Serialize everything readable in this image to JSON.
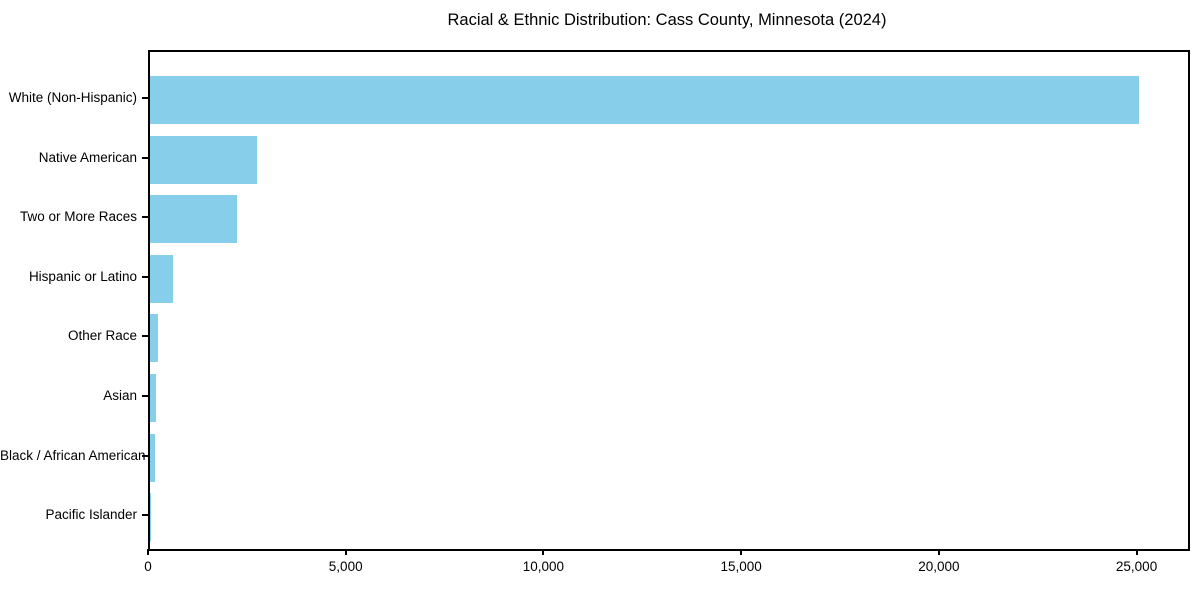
{
  "chart_data": {
    "type": "bar",
    "orientation": "horizontal",
    "title": "Racial & Ethnic Distribution: Cass County, Minnesota (2024)",
    "categories": [
      "White (Non-Hispanic)",
      "Native American",
      "Two or More Races",
      "Hispanic or Latino",
      "Other Race",
      "Asian",
      "Black / African American",
      "Pacific Islander"
    ],
    "values": [
      25000,
      2715,
      2210,
      575,
      195,
      145,
      120,
      10
    ],
    "bar_color": "#87CEEB",
    "axis_color": "#000000",
    "text_color": "#000000",
    "background_color": "#ffffff",
    "xlabel": "",
    "ylabel": "",
    "xlim": [
      0,
      26250
    ],
    "x_ticks": [
      {
        "value": 0,
        "label": "0"
      },
      {
        "value": 5000,
        "label": "5,000"
      },
      {
        "value": 10000,
        "label": "10,000"
      },
      {
        "value": 15000,
        "label": "15,000"
      },
      {
        "value": 20000,
        "label": "20,000"
      },
      {
        "value": 25000,
        "label": "25,000"
      }
    ],
    "grid": false,
    "legend": null
  }
}
